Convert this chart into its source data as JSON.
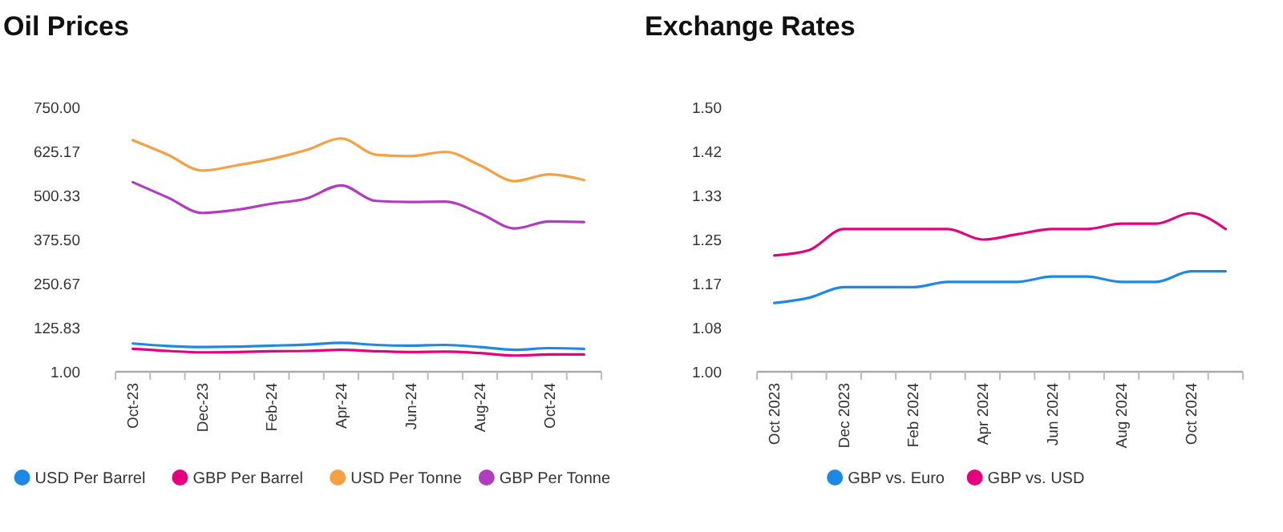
{
  "chart_data": [
    {
      "type": "line",
      "title": "Oil Prices",
      "categories": [
        "Oct-23",
        null,
        "Dec-23",
        null,
        "Feb-24",
        null,
        "Apr-24",
        null,
        "Jun-24",
        null,
        "Aug-24",
        null,
        "Oct-24",
        null
      ],
      "series": [
        {
          "name": "USD Per Barrel",
          "color": "#1e88e5",
          "values": [
            81,
            74,
            71,
            72,
            75,
            78,
            83,
            77,
            75,
            77,
            71,
            63,
            68,
            66
          ]
        },
        {
          "name": "GBP Per Barrel",
          "color": "#e6007e",
          "values": [
            66,
            60,
            56,
            57,
            59,
            60,
            63,
            59,
            57,
            58,
            54,
            47,
            50,
            50
          ]
        },
        {
          "name": "USD Per Tonne",
          "color": "#f5a142",
          "values": [
            657,
            616,
            571,
            586,
            604,
            629,
            662,
            616,
            612,
            624,
            586,
            541,
            560,
            544
          ]
        },
        {
          "name": "GBP Per Tonne",
          "color": "#b23cc0",
          "values": [
            538,
            495,
            451,
            460,
            477,
            492,
            529,
            485,
            482,
            483,
            450,
            407,
            427,
            425
          ]
        }
      ],
      "ylim": [
        1,
        750
      ],
      "yticks": [
        {
          "value": 1,
          "label": "1.00"
        },
        {
          "value": 125.83,
          "label": "125.83"
        },
        {
          "value": 250.67,
          "label": "250.67"
        },
        {
          "value": 375.5,
          "label": "375.50"
        },
        {
          "value": 500.33,
          "label": "500.33"
        },
        {
          "value": 625.17,
          "label": "625.17"
        },
        {
          "value": 750,
          "label": "750.00"
        }
      ],
      "legend": "bottom",
      "grid": false
    },
    {
      "type": "line",
      "title": "Exchange Rates",
      "categories": [
        "Oct 2023",
        null,
        "Dec 2023",
        null,
        "Feb 2024",
        null,
        "Apr 2024",
        null,
        "Jun 2024",
        null,
        "Aug 2024",
        null,
        "Oct 2024",
        null
      ],
      "series": [
        {
          "name": "GBP vs. Euro",
          "color": "#1e88e5",
          "values": [
            1.13,
            1.14,
            1.16,
            1.16,
            1.16,
            1.17,
            1.17,
            1.17,
            1.18,
            1.18,
            1.17,
            1.17,
            1.19,
            1.19
          ]
        },
        {
          "name": "GBP vs. USD",
          "color": "#e6007e",
          "values": [
            1.22,
            1.23,
            1.27,
            1.27,
            1.27,
            1.27,
            1.25,
            1.26,
            1.27,
            1.27,
            1.28,
            1.28,
            1.3,
            1.27
          ]
        }
      ],
      "ylim": [
        1,
        1.5
      ],
      "yticks": [
        {
          "value": 1,
          "label": "1.00"
        },
        {
          "value": 1.0833,
          "label": "1.08"
        },
        {
          "value": 1.1667,
          "label": "1.17"
        },
        {
          "value": 1.25,
          "label": "1.25"
        },
        {
          "value": 1.3333,
          "label": "1.33"
        },
        {
          "value": 1.4167,
          "label": "1.42"
        },
        {
          "value": 1.5,
          "label": "1.50"
        }
      ],
      "legend": "bottom",
      "grid": false
    }
  ]
}
